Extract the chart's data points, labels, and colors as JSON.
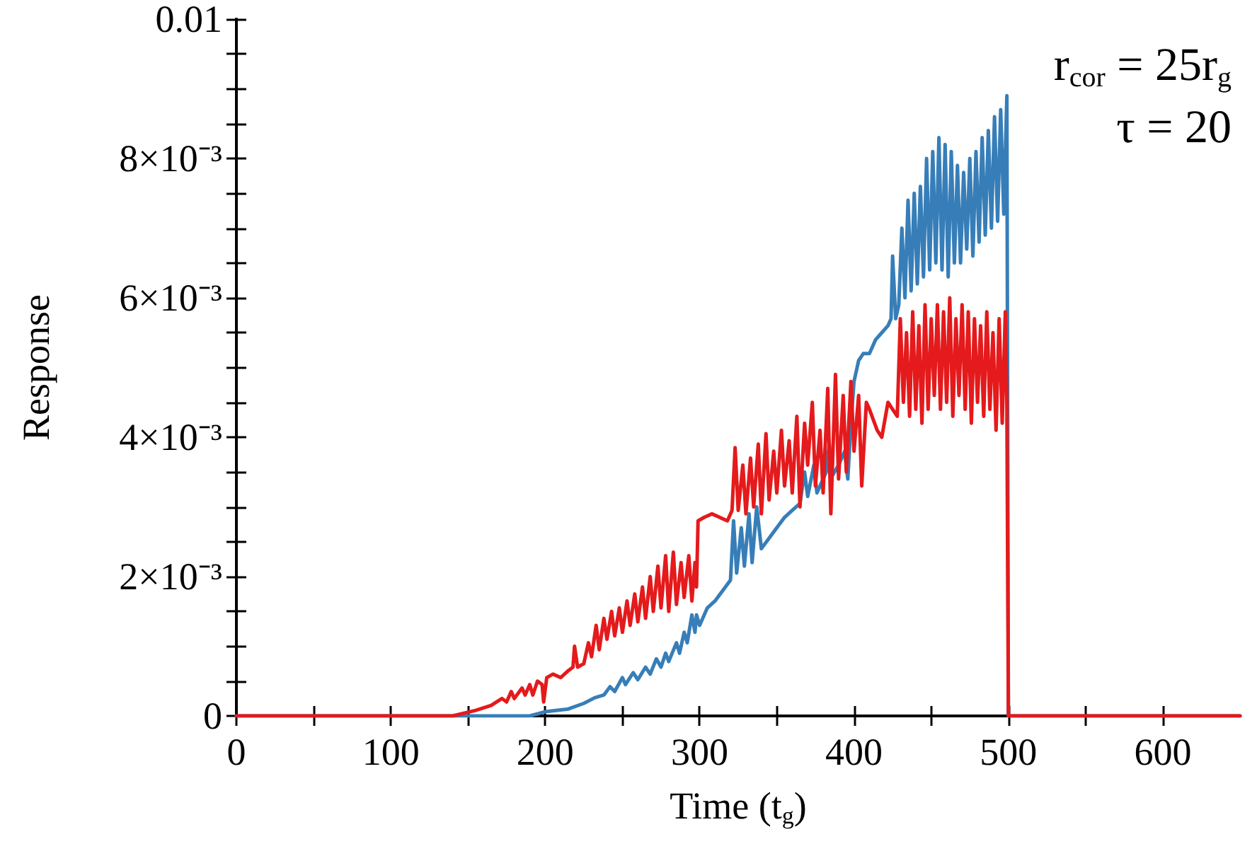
{
  "chart_data": {
    "type": "line",
    "xlabel": "Time (t$_{g}$)",
    "ylabel": "Response",
    "annotations": [
      "r$_{cor}$ = 25r$_{g}$",
      "τ = 20"
    ],
    "xlim": [
      0,
      650
    ],
    "ylim": [
      0,
      0.01
    ],
    "xticks": [
      0,
      {
        "value": 50,
        "label": null
      },
      100,
      {
        "value": 150,
        "label": null
      },
      200,
      {
        "value": 250,
        "label": null
      },
      300,
      {
        "value": 350,
        "label": null
      },
      400,
      {
        "value": 450,
        "label": null
      },
      500,
      {
        "value": 550,
        "label": null
      },
      600
    ],
    "yticks": [
      0,
      {
        "value": 0.0005,
        "label": null
      },
      {
        "value": 0.001,
        "label": null
      },
      {
        "value": 0.0015,
        "label": null
      },
      {
        "value": 0.002,
        "label": "2×10⁻³"
      },
      {
        "value": 0.0025,
        "label": null
      },
      {
        "value": 0.003,
        "label": null
      },
      {
        "value": 0.0035,
        "label": null
      },
      {
        "value": 0.004,
        "label": "4×10⁻³"
      },
      {
        "value": 0.0045,
        "label": null
      },
      {
        "value": 0.005,
        "label": null
      },
      {
        "value": 0.0055,
        "label": null
      },
      {
        "value": 0.006,
        "label": "6×10⁻³"
      },
      {
        "value": 0.0065,
        "label": null
      },
      {
        "value": 0.007,
        "label": null
      },
      {
        "value": 0.0075,
        "label": null
      },
      {
        "value": 0.008,
        "label": "8×10⁻³"
      },
      {
        "value": 0.0085,
        "label": null
      },
      {
        "value": 0.009,
        "label": null
      },
      {
        "value": 0.0095,
        "label": null
      },
      0.01
    ],
    "marker": "none",
    "line_style": "solid",
    "series": [
      {
        "color": "#377eb8",
        "x": [
          0,
          170,
          190,
          200,
          215,
          225,
          232,
          238,
          242,
          245,
          250,
          252,
          257,
          260,
          265,
          268,
          272,
          275,
          278,
          280,
          285,
          287,
          290,
          292,
          295,
          297,
          298,
          300,
          305,
          310,
          315,
          320,
          322,
          324,
          327,
          329,
          332,
          334,
          337,
          340,
          345,
          350,
          355,
          360,
          365,
          368,
          370,
          374,
          376,
          378,
          382,
          384,
          386,
          390,
          394,
          396,
          398,
          400,
          403,
          406,
          410,
          414,
          418,
          422,
          424,
          425,
          427,
          429,
          431,
          433,
          435,
          437,
          439,
          441,
          443,
          445,
          447,
          449,
          451,
          453,
          455,
          457,
          459,
          461,
          463,
          465,
          467,
          469,
          471,
          473,
          475,
          477,
          479,
          481,
          483,
          485,
          487,
          489,
          491,
          493,
          495,
          497,
          499,
          500,
          650
        ],
        "values": [
          0,
          0,
          0,
          6e-05,
          0.0001,
          0.00018,
          0.00026,
          0.0003,
          0.00042,
          0.00035,
          0.00055,
          0.00045,
          0.00062,
          0.00052,
          0.0007,
          0.0006,
          0.00082,
          0.0007,
          0.0009,
          0.00078,
          0.00105,
          0.0009,
          0.0012,
          0.00105,
          0.00145,
          0.0012,
          0.00145,
          0.0013,
          0.00155,
          0.00165,
          0.0018,
          0.00195,
          0.0028,
          0.00205,
          0.0027,
          0.00215,
          0.0029,
          0.0022,
          0.003,
          0.0024,
          0.00255,
          0.0027,
          0.00285,
          0.00295,
          0.00305,
          0.0035,
          0.00315,
          0.0036,
          0.0032,
          0.0033,
          0.0035,
          0.0039,
          0.00345,
          0.0036,
          0.0038,
          0.0034,
          0.0042,
          0.0048,
          0.0051,
          0.0052,
          0.0052,
          0.0054,
          0.0055,
          0.0056,
          0.0057,
          0.0066,
          0.0057,
          0.0059,
          0.007,
          0.006,
          0.0074,
          0.0061,
          0.0075,
          0.0062,
          0.0076,
          0.0063,
          0.008,
          0.0064,
          0.0081,
          0.0065,
          0.0083,
          0.0064,
          0.0082,
          0.0063,
          0.0081,
          0.0065,
          0.0079,
          0.0065,
          0.0078,
          0.0067,
          0.008,
          0.0066,
          0.0081,
          0.0068,
          0.0083,
          0.0069,
          0.0084,
          0.007,
          0.0086,
          0.0071,
          0.0087,
          0.0072,
          0.0089,
          0,
          0
        ]
      },
      {
        "color": "#e41a1c",
        "x": [
          0,
          120,
          140,
          155,
          165,
          172,
          175,
          178,
          180,
          185,
          187,
          190,
          192,
          195,
          198,
          199,
          201,
          205,
          210,
          215,
          218,
          219,
          221,
          225,
          228,
          230,
          233,
          235,
          238,
          240,
          243,
          245,
          248,
          250,
          253,
          255,
          258,
          260,
          263,
          265,
          268,
          270,
          273,
          275,
          278,
          280,
          283,
          285,
          288,
          290,
          293,
          295,
          297,
          298,
          299,
          303,
          308,
          313,
          318,
          321,
          323,
          325,
          328,
          330,
          333,
          335,
          338,
          340,
          343,
          345,
          348,
          350,
          353,
          355,
          358,
          360,
          363,
          365,
          368,
          370,
          373,
          375,
          378,
          380,
          383,
          385,
          388,
          390,
          393,
          395,
          398,
          400,
          403,
          405,
          408,
          410,
          415,
          418,
          422,
          425,
          428,
          430,
          432,
          434,
          436,
          438,
          440,
          442,
          444,
          446,
          448,
          450,
          452,
          454,
          456,
          458,
          460,
          462,
          464,
          466,
          468,
          470,
          472,
          474,
          476,
          478,
          480,
          482,
          484,
          486,
          488,
          490,
          492,
          494,
          496,
          498,
          499,
          500,
          650
        ],
        "values": [
          0,
          0,
          0,
          8e-05,
          0.00015,
          0.00025,
          0.0002,
          0.00035,
          0.00025,
          0.0004,
          0.0003,
          0.00045,
          0.0003,
          0.0005,
          0.00045,
          0.0002,
          0.00055,
          0.0006,
          0.00055,
          0.00065,
          0.0007,
          0.001,
          0.0007,
          0.00075,
          0.00105,
          0.00085,
          0.0013,
          0.00095,
          0.0014,
          0.0011,
          0.0015,
          0.00115,
          0.00155,
          0.0012,
          0.00165,
          0.0013,
          0.00175,
          0.00135,
          0.00185,
          0.0014,
          0.002,
          0.0015,
          0.00215,
          0.00155,
          0.0023,
          0.0015,
          0.00235,
          0.0016,
          0.0022,
          0.0017,
          0.0023,
          0.00165,
          0.0022,
          0.00185,
          0.0028,
          0.00285,
          0.0029,
          0.00285,
          0.0028,
          0.00295,
          0.00385,
          0.00295,
          0.0036,
          0.0029,
          0.0037,
          0.003,
          0.0039,
          0.0029,
          0.00405,
          0.0031,
          0.0038,
          0.0032,
          0.0041,
          0.0033,
          0.00395,
          0.0032,
          0.0043,
          0.003,
          0.0042,
          0.0036,
          0.0045,
          0.0033,
          0.0041,
          0.0032,
          0.0047,
          0.0029,
          0.0049,
          0.0034,
          0.0046,
          0.0035,
          0.0048,
          0.0038,
          0.0046,
          0.0033,
          0.0045,
          0.0044,
          0.0041,
          0.004,
          0.0045,
          0.0044,
          0.0043,
          0.0057,
          0.0045,
          0.0055,
          0.0043,
          0.0058,
          0.0044,
          0.0056,
          0.0042,
          0.0059,
          0.0044,
          0.0057,
          0.0046,
          0.0059,
          0.0044,
          0.0058,
          0.0045,
          0.006,
          0.0043,
          0.0057,
          0.0046,
          0.0059,
          0.0044,
          0.0058,
          0.0042,
          0.0057,
          0.0045,
          0.0056,
          0.0043,
          0.0058,
          0.0044,
          0.0055,
          0.0041,
          0.0057,
          0.0042,
          0.0058,
          0.0045,
          0,
          0
        ]
      }
    ]
  }
}
